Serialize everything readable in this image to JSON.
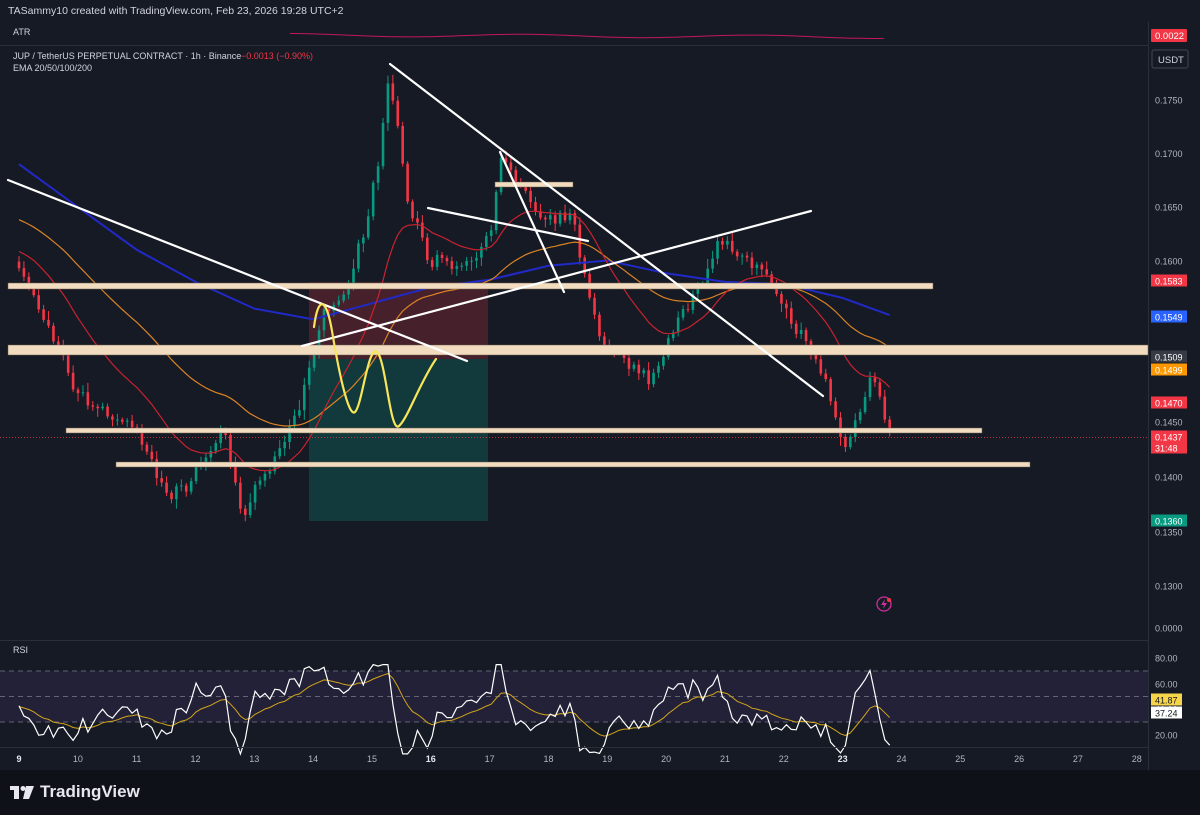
{
  "attribution": "TASammy10 created with TradingView.com, Feb 23, 2026 19:28 UTC+2",
  "atr_panel": {
    "label": "ATR",
    "value_badge": "0.0022"
  },
  "header": {
    "symbol": "JUP / TetherUS PERPETUAL CONTRACT · 1h · Binance",
    "change": "−0.0013 (−0.90%)",
    "indicator": "EMA 20/50/100/200",
    "currency_button": "USDT"
  },
  "price_axis": {
    "ticks": [
      "0.1750",
      "0.1700",
      "0.1650",
      "0.1600",
      "0.1450",
      "0.1400",
      "0.1350",
      "0.1300",
      "0.0000"
    ]
  },
  "price_badges": [
    {
      "text": "0.1583",
      "color": "#f23645"
    },
    {
      "text": "0.1549",
      "color": "#2962ff"
    },
    {
      "text": "0.1509",
      "color": "#363a45"
    },
    {
      "text": "0.1499",
      "color": "#ff9800"
    },
    {
      "text": "0.1470",
      "color": "#f23645"
    },
    {
      "text": "0.1437",
      "color": "#f23645"
    },
    {
      "text": "31:48",
      "color": "#f23645"
    },
    {
      "text": "0.1360",
      "color": "#089981"
    }
  ],
  "rsi_panel": {
    "label": "RSI",
    "levels": [
      "80.00",
      "60.00",
      "40.00",
      "20.00"
    ],
    "value_badges": [
      {
        "text": "41.87",
        "color": "#f7d54a"
      },
      {
        "text": "37.24",
        "color": "#ffffff"
      }
    ]
  },
  "time_axis": {
    "labels": [
      "9",
      "10",
      "11",
      "12",
      "13",
      "14",
      "15",
      "16",
      "17",
      "18",
      "19",
      "20",
      "21",
      "22",
      "23",
      "24",
      "25",
      "26",
      "27",
      "28"
    ]
  },
  "brand": {
    "name": "TradingView"
  },
  "colors": {
    "background": "#161a25",
    "up": "#089981",
    "down": "#f23645",
    "ema20": "#f23645",
    "ema50": "#ff9800",
    "ema200": "#2129c8",
    "zone": "#f1dcc0"
  },
  "chart_data": {
    "type": "candlestick",
    "title": "JUP / TetherUS PERPETUAL CONTRACT · 1h · Binance",
    "timeframe": "1h",
    "x_range": [
      "9",
      "28"
    ],
    "ylim": [
      0.1275,
      0.1795
    ],
    "key_points": [
      {
        "x": "9",
        "price": 0.1595
      },
      {
        "x": "10",
        "price": 0.1475
      },
      {
        "x": "11",
        "price": 0.144
      },
      {
        "x": "11.6",
        "price": 0.1375
      },
      {
        "x": "12.5",
        "price": 0.144
      },
      {
        "x": "12.8",
        "price": 0.136
      },
      {
        "x": "13.7",
        "price": 0.145
      },
      {
        "x": "14.2",
        "price": 0.1555
      },
      {
        "x": "14.6",
        "price": 0.157
      },
      {
        "x": "15.1",
        "price": 0.169
      },
      {
        "x": "15.3",
        "price": 0.1775
      },
      {
        "x": "15.6",
        "price": 0.166
      },
      {
        "x": "16",
        "price": 0.16
      },
      {
        "x": "16.6",
        "price": 0.159
      },
      {
        "x": "17",
        "price": 0.162
      },
      {
        "x": "17.2",
        "price": 0.1695
      },
      {
        "x": "17.9",
        "price": 0.164
      },
      {
        "x": "18.4",
        "price": 0.164
      },
      {
        "x": "18.9",
        "price": 0.152
      },
      {
        "x": "19.7",
        "price": 0.149
      },
      {
        "x": "20.4",
        "price": 0.156
      },
      {
        "x": "20.9",
        "price": 0.162
      },
      {
        "x": "21.6",
        "price": 0.159
      },
      {
        "x": "22.4",
        "price": 0.152
      },
      {
        "x": "22.7",
        "price": 0.149
      },
      {
        "x": "23",
        "price": 0.1425
      },
      {
        "x": "23.2",
        "price": 0.1445
      },
      {
        "x": "23.5",
        "price": 0.15
      },
      {
        "x": "23.8",
        "price": 0.144
      }
    ],
    "support_resistance_zones": [
      0.1582,
      0.151,
      0.1446,
      0.1414
    ],
    "rsi_ylim": [
      10,
      90
    ],
    "rsi_last": 37.24,
    "rsi_ma_last": 41.87
  }
}
